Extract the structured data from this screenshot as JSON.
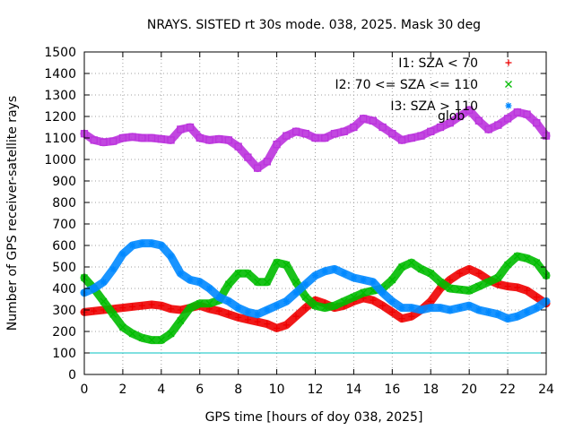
{
  "chart_data": {
    "type": "scatter",
    "title": "NRAYS. SISTED rt 30s mode. 038, 2025. Mask 30 deg",
    "xlabel": "GPS time [hours of doy 038, 2025]",
    "ylabel": "Number of GPS receiver-satellite rays",
    "xlim": [
      0,
      24
    ],
    "ylim": [
      0,
      1500
    ],
    "xticks": [
      0,
      2,
      4,
      6,
      8,
      10,
      12,
      14,
      16,
      18,
      20,
      22,
      24
    ],
    "yticks": [
      0,
      100,
      200,
      300,
      400,
      500,
      600,
      700,
      800,
      900,
      1000,
      1100,
      1200,
      1300,
      1400,
      1500
    ],
    "grid": true,
    "legend_position": "top-right",
    "threshold_line": {
      "value": 100,
      "color": "#00c0c0"
    },
    "legend_overflow_text": "glob",
    "series": [
      {
        "name": "I1: SZA < 70",
        "marker": "+",
        "color": "#ee0000",
        "x": [
          0,
          0.5,
          1,
          1.5,
          2,
          2.5,
          3,
          3.5,
          4,
          4.5,
          5,
          5.5,
          6,
          6.5,
          7,
          7.5,
          8,
          8.5,
          9,
          9.5,
          10,
          10.5,
          11,
          11.5,
          12,
          12.5,
          13,
          13.5,
          14,
          14.5,
          15,
          15.5,
          16,
          16.5,
          17,
          17.5,
          18,
          18.5,
          19,
          19.5,
          20,
          20.5,
          21,
          21.5,
          22,
          22.5,
          23,
          23.5,
          24
        ],
        "y": [
          290,
          295,
          300,
          305,
          310,
          315,
          320,
          325,
          320,
          305,
          300,
          310,
          320,
          305,
          295,
          280,
          265,
          255,
          245,
          235,
          215,
          230,
          270,
          310,
          345,
          330,
          310,
          320,
          340,
          355,
          345,
          320,
          290,
          260,
          270,
          300,
          340,
          400,
          440,
          470,
          490,
          470,
          440,
          420,
          410,
          405,
          390,
          360,
          330
        ]
      },
      {
        "name": "I2: 70 <= SZA <= 110",
        "marker": "x",
        "color": "#00bb00",
        "x": [
          0,
          0.5,
          1,
          1.5,
          2,
          2.5,
          3,
          3.5,
          4,
          4.5,
          5,
          5.5,
          6,
          6.5,
          7,
          7.5,
          8,
          8.5,
          9,
          9.5,
          10,
          10.5,
          11,
          11.5,
          12,
          12.5,
          13,
          13.5,
          14,
          14.5,
          15,
          15.5,
          16,
          16.5,
          17,
          17.5,
          18,
          18.5,
          19,
          19.5,
          20,
          20.5,
          21,
          21.5,
          22,
          22.5,
          23,
          23.5,
          24
        ],
        "y": [
          450,
          400,
          340,
          280,
          220,
          190,
          170,
          160,
          160,
          190,
          250,
          310,
          330,
          330,
          345,
          420,
          470,
          470,
          430,
          430,
          520,
          510,
          430,
          360,
          320,
          310,
          320,
          340,
          360,
          380,
          390,
          400,
          440,
          500,
          520,
          490,
          470,
          430,
          400,
          395,
          390,
          410,
          430,
          450,
          510,
          550,
          540,
          520,
          460
        ]
      },
      {
        "name": "I3: SZA > 110",
        "marker": "*",
        "color": "#0088ff",
        "x": [
          0,
          0.5,
          1,
          1.5,
          2,
          2.5,
          3,
          3.5,
          4,
          4.5,
          5,
          5.5,
          6,
          6.5,
          7,
          7.5,
          8,
          8.5,
          9,
          9.5,
          10,
          10.5,
          11,
          11.5,
          12,
          12.5,
          13,
          13.5,
          14,
          14.5,
          15,
          15.5,
          16,
          16.5,
          17,
          17.5,
          18,
          18.5,
          19,
          19.5,
          20,
          20.5,
          21,
          21.5,
          22,
          22.5,
          23,
          23.5,
          24
        ],
        "y": [
          380,
          400,
          430,
          490,
          560,
          600,
          610,
          610,
          600,
          550,
          470,
          440,
          430,
          400,
          360,
          340,
          310,
          290,
          280,
          300,
          320,
          340,
          380,
          420,
          460,
          480,
          490,
          470,
          450,
          440,
          430,
          380,
          340,
          310,
          310,
          300,
          310,
          310,
          300,
          310,
          320,
          300,
          290,
          280,
          260,
          270,
          290,
          310,
          340
        ]
      },
      {
        "name": "glob",
        "marker": "square",
        "color": "#bb33dd",
        "x": [
          0,
          0.5,
          1,
          1.5,
          2,
          2.5,
          3,
          3.5,
          4,
          4.5,
          5,
          5.5,
          6,
          6.5,
          7,
          7.5,
          8,
          8.5,
          9,
          9.5,
          10,
          10.5,
          11,
          11.5,
          12,
          12.5,
          13,
          13.5,
          14,
          14.5,
          15,
          15.5,
          16,
          16.5,
          17,
          17.5,
          18,
          18.5,
          19,
          19.5,
          20,
          20.5,
          21,
          21.5,
          22,
          22.5,
          23,
          23.5,
          24
        ],
        "y": [
          1120,
          1090,
          1080,
          1085,
          1100,
          1105,
          1100,
          1100,
          1095,
          1090,
          1140,
          1150,
          1100,
          1090,
          1095,
          1090,
          1060,
          1010,
          960,
          990,
          1070,
          1110,
          1130,
          1120,
          1100,
          1100,
          1120,
          1130,
          1150,
          1190,
          1180,
          1150,
          1120,
          1090,
          1100,
          1110,
          1130,
          1150,
          1170,
          1200,
          1230,
          1180,
          1140,
          1160,
          1190,
          1220,
          1210,
          1170,
          1110
        ]
      }
    ]
  }
}
